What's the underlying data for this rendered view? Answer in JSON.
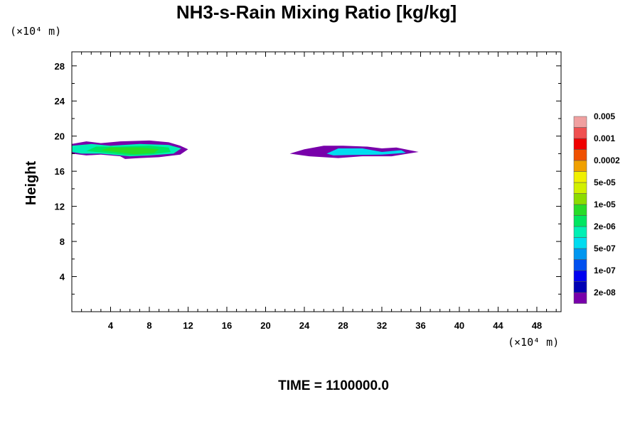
{
  "chart_data": {
    "type": "heatmap",
    "title": "NH3-s-Rain Mixing Ratio [kg/kg]",
    "xlabel": "",
    "ylabel": "Height",
    "x_unit": "(×10⁴ m)",
    "y_unit": "(×10⁴ m)",
    "xlim": [
      0,
      50.5
    ],
    "ylim": [
      0,
      29.6
    ],
    "x_ticks": [
      4,
      8,
      12,
      16,
      20,
      24,
      28,
      32,
      36,
      40,
      44,
      48
    ],
    "y_ticks": [
      4,
      8,
      12,
      16,
      20,
      24,
      28
    ],
    "time_label": "TIME = 1100000.0",
    "colorbar": {
      "labels": [
        "2e-08",
        "1e-07",
        "5e-07",
        "2e-06",
        "1e-05",
        "5e-05",
        "0.0002",
        "0.001",
        "0.005"
      ],
      "colors": [
        "#7800aa",
        "#0000b4",
        "#0000f0",
        "#0050f0",
        "#0096f0",
        "#00dcf0",
        "#00f0b4",
        "#00e660",
        "#28dc28",
        "#8cdc00",
        "#d2f000",
        "#f0f000",
        "#f0a000",
        "#f05000",
        "#f00000",
        "#f05050",
        "#f0a0a0"
      ]
    },
    "regions": [
      {
        "name": "left",
        "x_range": [
          0,
          12.0
        ],
        "height_range": [
          17.3,
          19.6
        ],
        "layers": [
          {
            "level": 0,
            "points": [
              [
                0,
                18.0
              ],
              [
                0,
                19.1
              ],
              [
                1.5,
                19.4
              ],
              [
                3,
                19.2
              ],
              [
                5,
                19.4
              ],
              [
                8,
                19.5
              ],
              [
                10,
                19.3
              ],
              [
                11.2,
                18.9
              ],
              [
                12.0,
                18.5
              ],
              [
                11.2,
                17.9
              ],
              [
                9,
                17.6
              ],
              [
                7,
                17.5
              ],
              [
                5.5,
                17.4
              ],
              [
                5.0,
                17.7
              ],
              [
                3,
                17.9
              ],
              [
                1.5,
                17.8
              ]
            ]
          },
          {
            "level": 6,
            "points": [
              [
                0,
                18.2
              ],
              [
                0,
                18.9
              ],
              [
                2,
                19.1
              ],
              [
                4,
                18.9
              ],
              [
                7,
                19.1
              ],
              [
                10,
                19.0
              ],
              [
                11.3,
                18.6
              ],
              [
                10.5,
                18.0
              ],
              [
                8,
                17.8
              ],
              [
                6,
                17.7
              ],
              [
                3,
                18.0
              ],
              [
                1,
                18.0
              ]
            ]
          },
          {
            "level": 7,
            "points": [
              [
                1.5,
                18.3
              ],
              [
                2.5,
                18.8
              ],
              [
                5,
                18.8
              ],
              [
                8,
                18.9
              ],
              [
                10,
                18.7
              ],
              [
                10.2,
                18.2
              ],
              [
                8,
                17.9
              ],
              [
                6,
                17.8
              ],
              [
                3.5,
                18.1
              ]
            ]
          },
          {
            "level": 8,
            "points": [
              [
                3,
                18.4
              ],
              [
                4,
                18.7
              ],
              [
                7,
                18.7
              ],
              [
                9,
                18.5
              ],
              [
                8.5,
                18.1
              ],
              [
                6.5,
                17.95
              ],
              [
                4.5,
                18.2
              ]
            ]
          }
        ]
      },
      {
        "name": "right",
        "x_range": [
          22.4,
          35.8
        ],
        "height_range": [
          17.4,
          19.0
        ],
        "layers": [
          {
            "level": 0,
            "points": [
              [
                22.5,
                18.0
              ],
              [
                24,
                18.5
              ],
              [
                26,
                18.9
              ],
              [
                28,
                18.9
              ],
              [
                30.5,
                18.8
              ],
              [
                32,
                18.6
              ],
              [
                33.5,
                18.7
              ],
              [
                35.8,
                18.2
              ],
              [
                33,
                17.7
              ],
              [
                30,
                17.7
              ],
              [
                27.5,
                17.5
              ],
              [
                26,
                17.6
              ],
              [
                24.5,
                17.7
              ]
            ]
          },
          {
            "level": 5,
            "points": [
              [
                26.3,
                18.0
              ],
              [
                27.5,
                18.6
              ],
              [
                30,
                18.6
              ],
              [
                32,
                18.2
              ],
              [
                34,
                18.4
              ],
              [
                34.5,
                18.1
              ],
              [
                32,
                17.9
              ],
              [
                29,
                17.85
              ],
              [
                27,
                17.8
              ]
            ]
          }
        ]
      }
    ]
  }
}
